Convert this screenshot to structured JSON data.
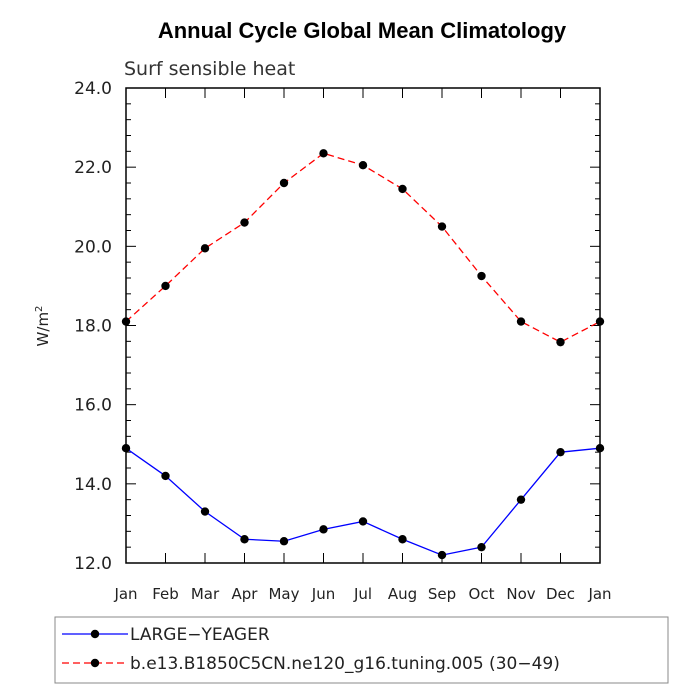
{
  "chart_data": {
    "type": "line",
    "title": "Annual Cycle Global Mean Climatology",
    "subtitle": "Surf sensible heat",
    "ylabel_base": "W/m",
    "ylabel_sup": "2",
    "xlabel": "",
    "categories": [
      "Jan",
      "Feb",
      "Mar",
      "Apr",
      "May",
      "Jun",
      "Jul",
      "Aug",
      "Sep",
      "Oct",
      "Nov",
      "Dec",
      "Jan"
    ],
    "ylim": [
      12.0,
      24.0
    ],
    "yticks": [
      "12.0",
      "14.0",
      "16.0",
      "18.0",
      "20.0",
      "22.0",
      "24.0"
    ],
    "grid": false,
    "legend_position": "bottom",
    "series": [
      {
        "name": "LARGE−YEAGER",
        "color": "#0000ff",
        "dash": "solid",
        "marker": "filled-circle",
        "values": [
          14.9,
          14.2,
          13.3,
          12.6,
          12.55,
          12.85,
          13.05,
          12.6,
          12.2,
          12.4,
          13.6,
          14.8,
          14.9
        ]
      },
      {
        "name": "b.e13.B1850C5CN.ne120_g16.tuning.005 (30−49)",
        "color": "#ff0000",
        "dash": "dashed",
        "marker": "filled-circle",
        "values": [
          18.1,
          19.0,
          19.95,
          20.6,
          21.6,
          22.35,
          22.05,
          21.45,
          20.5,
          19.25,
          18.1,
          17.58,
          18.1
        ]
      }
    ]
  }
}
